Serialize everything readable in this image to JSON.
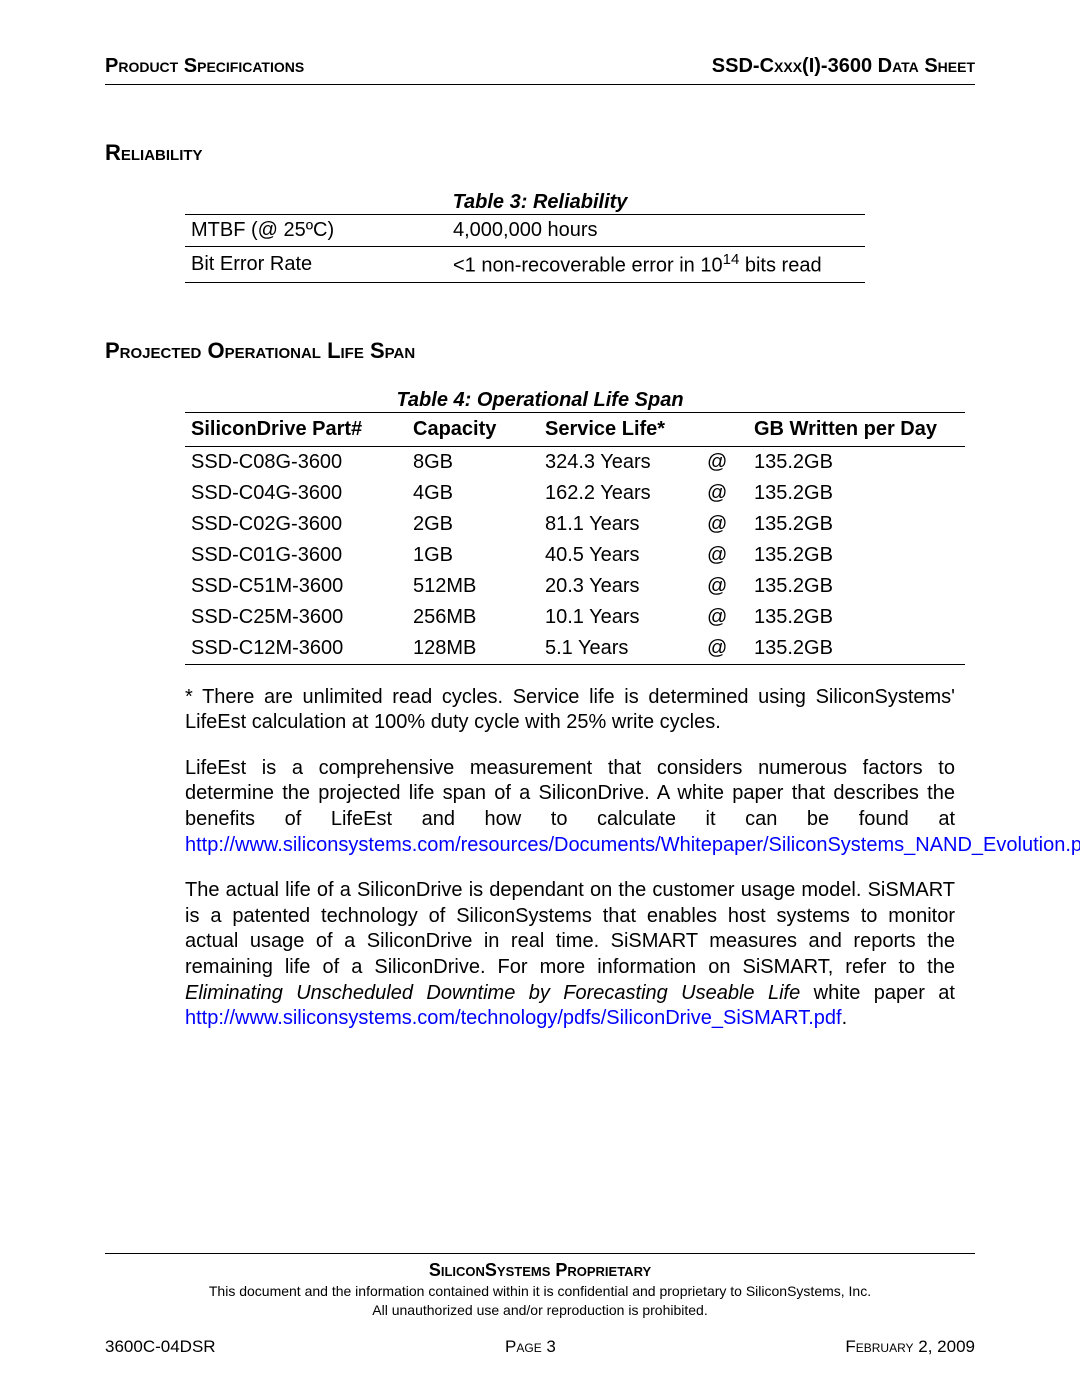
{
  "header": {
    "left": "Product Specifications",
    "right": "SSD-Cxxx(I)-3600 Data Sheet"
  },
  "section_reliability": {
    "heading": "Reliability",
    "table_title": "Table 3:  Reliability",
    "rows": [
      {
        "label": "MTBF (@ 25ºC)",
        "value": "4,000,000 hours"
      },
      {
        "label": "Bit Error Rate",
        "value_pre": "<1 non-recoverable error in 10",
        "value_sup": "14",
        "value_post": " bits read"
      }
    ]
  },
  "section_lifespan": {
    "heading": "Projected Operational Life Span",
    "table_title": "Table 4:  Operational Life Span",
    "columns": [
      "SiliconDrive Part#",
      "Capacity",
      "Service Life*",
      "",
      "GB Written per Day"
    ],
    "rows": [
      [
        "SSD-C08G-3600",
        "8GB",
        "324.3 Years",
        "@",
        "135.2GB"
      ],
      [
        "SSD-C04G-3600",
        "4GB",
        "162.2 Years",
        "@",
        "135.2GB"
      ],
      [
        "SSD-C02G-3600",
        "2GB",
        "81.1 Years",
        "@",
        "135.2GB"
      ],
      [
        "SSD-C01G-3600",
        "1GB",
        "40.5 Years",
        "@",
        "135.2GB"
      ],
      [
        "SSD-C51M-3600",
        "512MB",
        "20.3 Years",
        "@",
        "135.2GB"
      ],
      [
        "SSD-C25M-3600",
        "256MB",
        "10.1 Years",
        "@",
        "135.2GB"
      ],
      [
        "SSD-C12M-3600",
        "128MB",
        "5.1 Years",
        "@",
        "135.2GB"
      ]
    ]
  },
  "paragraphs": {
    "note": "* There are unlimited read cycles. Service life is determined using SiliconSystems' LifeEst calculation at 100% duty cycle with 25% write cycles.",
    "p2_pre": "LifeEst is a comprehensive measurement that considers numerous factors to determine the projected life span of a SiliconDrive. A white paper that describes the benefits of LifeEst and how to calculate it can be found at ",
    "p2_link": "http://www.siliconsystems.com/resources/Documents/Whitepaper/SiliconSystems_NAND_Evolution.pdf",
    "p2_post": ".",
    "p3_pre": "The actual life of a SiliconDrive is dependant on the customer usage model. SiSMART is a patented technology of SiliconSystems that enables host systems to monitor actual usage of a SiliconDrive in real time. SiSMART measures and reports the remaining life of a SiliconDrive. For more information on SiSMART, refer to the ",
    "p3_italic": "Eliminating Unscheduled Downtime by Forecasting Useable Life",
    "p3_mid": " white paper at ",
    "p3_link": "http://www.siliconsystems.com/technology/pdfs/SiliconDrive_SiSMART.pdf",
    "p3_post": "."
  },
  "footer": {
    "proprietary": "SiliconSystems Proprietary",
    "disclaimer1": "This document and the information contained within it is confidential and proprietary to SiliconSystems, Inc.",
    "disclaimer2": "All unauthorized use and/or reproduction is prohibited.",
    "doc_id": "3600C-04DSR",
    "page": "Page 3",
    "date": "February 2, 2009"
  },
  "colors": {
    "text": "#000000",
    "link": "#0000ff",
    "background": "#ffffff",
    "rule": "#000000"
  },
  "typography": {
    "body_font": "Arial",
    "body_size_pt": 15,
    "heading_size_pt": 16,
    "footer_small_pt": 10
  }
}
